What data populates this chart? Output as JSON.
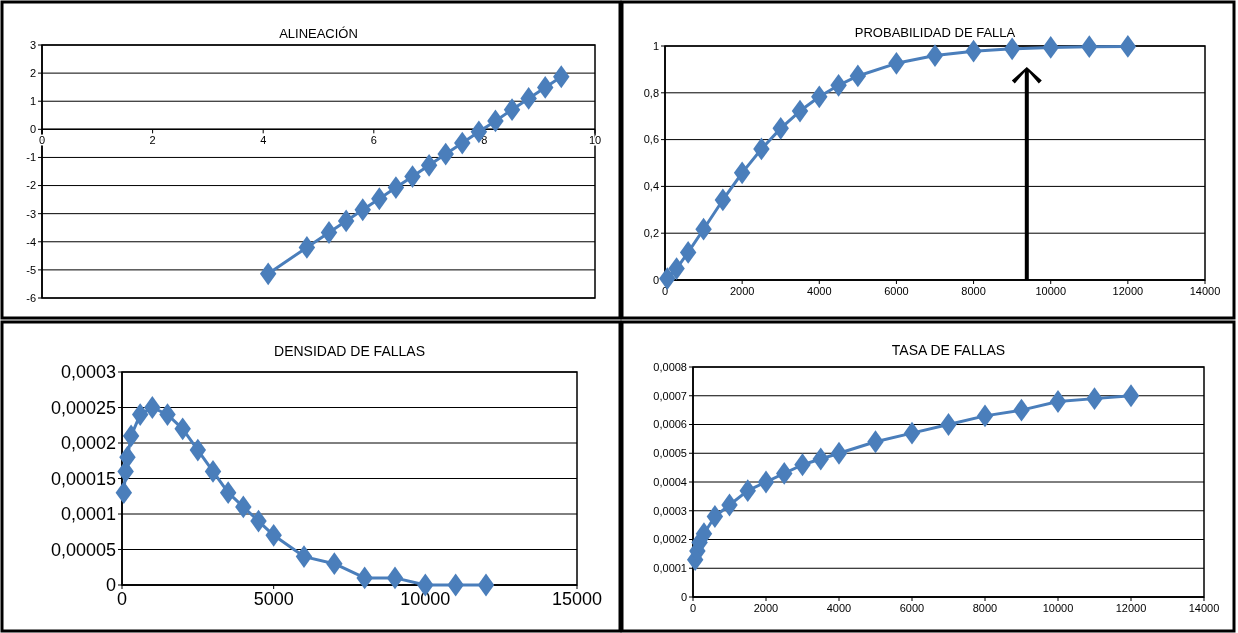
{
  "chart_data": [
    {
      "type": "line",
      "title": "ALINEACIÓN",
      "marker": "diamond",
      "line_style": "solid",
      "grid": "y",
      "xlim": [
        0,
        10
      ],
      "xticks": [
        0,
        2,
        4,
        6,
        8,
        10
      ],
      "ylim": [
        -6,
        3
      ],
      "yticks": [
        -6,
        -5,
        -4,
        -3,
        -2,
        -1,
        0,
        1,
        2,
        3
      ],
      "series": [
        {
          "color": "#4a7ebb",
          "x": [
            4.09,
            4.79,
            5.19,
            5.5,
            5.8,
            6.1,
            6.4,
            6.7,
            7.0,
            7.3,
            7.6,
            7.9,
            8.2,
            8.5,
            8.8,
            9.1,
            9.39
          ],
          "values": [
            -5.14,
            -4.2,
            -3.67,
            -3.26,
            -2.86,
            -2.47,
            -2.07,
            -1.68,
            -1.28,
            -0.88,
            -0.49,
            -0.09,
            0.3,
            0.7,
            1.1,
            1.49,
            1.87
          ]
        }
      ]
    },
    {
      "type": "line",
      "title": "PROBABILIDAD DE FALLA",
      "marker": "diamond",
      "line_style": "solid",
      "grid": "y",
      "xlim": [
        0,
        14000
      ],
      "xticks": [
        0,
        2000,
        4000,
        6000,
        8000,
        10000,
        12000,
        14000
      ],
      "ylim": [
        0,
        1
      ],
      "yticks": [
        0,
        {
          "value": 0.2,
          "label": "0,2"
        },
        {
          "value": 0.4,
          "label": "0,4"
        },
        {
          "value": 0.6,
          "label": "0,6"
        },
        {
          "value": 0.8,
          "label": "0,8"
        },
        1
      ],
      "series": [
        {
          "color": "#4a7ebb",
          "x": [
            60,
            300,
            600,
            1000,
            1500,
            2000,
            2500,
            3000,
            3500,
            4000,
            4500,
            5000,
            6000,
            7000,
            8000,
            9000,
            10000,
            11000,
            12000
          ],
          "values": [
            0.006,
            0.049,
            0.118,
            0.217,
            0.342,
            0.458,
            0.56,
            0.648,
            0.722,
            0.783,
            0.832,
            0.872,
            0.926,
            0.959,
            0.978,
            0.988,
            0.994,
            0.997,
            0.998
          ]
        }
      ]
    },
    {
      "type": "line",
      "title": "DENSIDAD DE FALLAS",
      "marker": "diamond",
      "line_style": "solid",
      "grid": "y",
      "xlim": [
        0,
        15000
      ],
      "xticks": [
        0,
        5000,
        10000,
        15000
      ],
      "ylim": [
        0,
        0.0003
      ],
      "yticks": [
        0,
        {
          "value": 5e-05,
          "label": "0,00005"
        },
        {
          "value": 0.0001,
          "label": "0,0001"
        },
        {
          "value": 0.00015,
          "label": "0,00015"
        },
        {
          "value": 0.0002,
          "label": "0,0002"
        },
        {
          "value": 0.00025,
          "label": "0,00025"
        },
        {
          "value": 0.0003,
          "label": "0,0003"
        }
      ],
      "series": [
        {
          "color": "#4a7ebb",
          "x": [
            60,
            120,
            180,
            300,
            600,
            1000,
            1500,
            2000,
            2500,
            3000,
            3500,
            4000,
            4500,
            5000,
            6000,
            7000,
            8000,
            9000,
            10000,
            11000,
            12000
          ],
          "values": [
            0.00013,
            0.00016,
            0.00018,
            0.00021,
            0.00024,
            0.00025,
            0.00024,
            0.00022,
            0.00019,
            0.00016,
            0.00013,
            0.00011,
            9e-05,
            7e-05,
            4e-05,
            3e-05,
            1e-05,
            1e-05,
            0,
            0,
            0
          ]
        }
      ]
    },
    {
      "type": "line",
      "title": "TASA DE FALLAS",
      "marker": "diamond",
      "line_style": "solid",
      "grid": "y",
      "xlim": [
        0,
        14000
      ],
      "xticks": [
        0,
        2000,
        4000,
        6000,
        8000,
        10000,
        12000,
        14000
      ],
      "ylim": [
        0,
        0.0008
      ],
      "yticks": [
        0,
        {
          "value": 0.0001,
          "label": "0,0001"
        },
        {
          "value": 0.0002,
          "label": "0,0002"
        },
        {
          "value": 0.0003,
          "label": "0,0003"
        },
        {
          "value": 0.0004,
          "label": "0,0004"
        },
        {
          "value": 0.0005,
          "label": "0,0005"
        },
        {
          "value": 0.0006,
          "label": "0,0006"
        },
        {
          "value": 0.0007,
          "label": "0,0007"
        },
        {
          "value": 0.0008,
          "label": "0,0008"
        }
      ],
      "series": [
        {
          "color": "#4a7ebb",
          "x": [
            60,
            120,
            180,
            300,
            600,
            1000,
            1500,
            2000,
            2500,
            3000,
            3500,
            4000,
            5000,
            6000,
            7000,
            8000,
            9000,
            10000,
            11000,
            12000
          ],
          "values": [
            0.00013,
            0.00016,
            0.00019,
            0.00022,
            0.00028,
            0.00032,
            0.00037,
            0.0004,
            0.00043,
            0.00046,
            0.00048,
            0.0005,
            0.00054,
            0.00057,
            0.0006,
            0.00063,
            0.00065,
            0.00068,
            0.00069,
            0.0007
          ]
        }
      ]
    }
  ]
}
